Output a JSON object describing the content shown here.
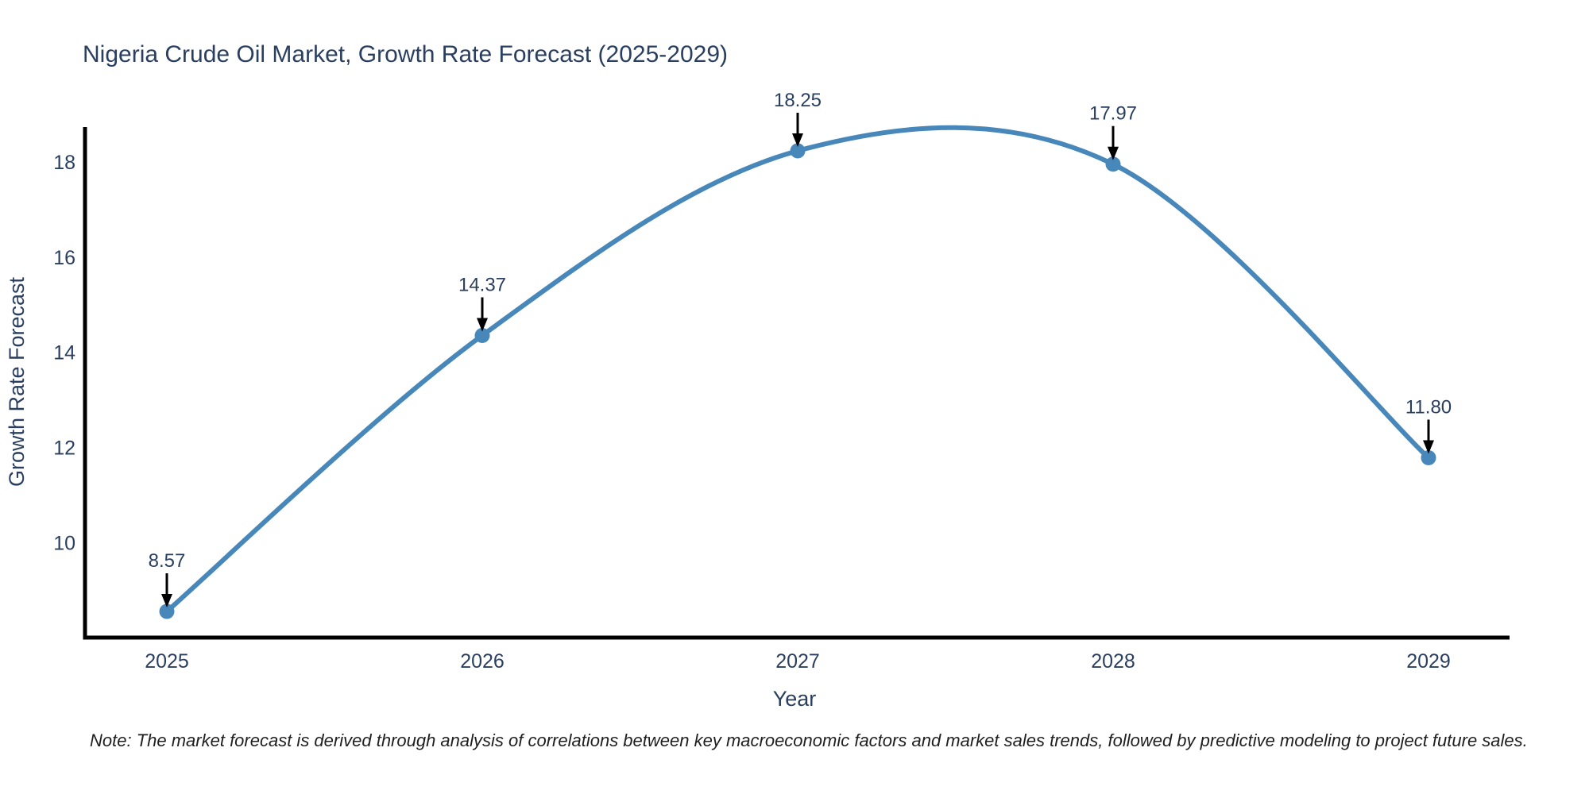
{
  "chart_data": {
    "type": "line",
    "title": "Nigeria Crude Oil Market, Growth Rate Forecast (2025-2029)",
    "xlabel": "Year",
    "ylabel": "Growth Rate Forecast",
    "categories": [
      "2025",
      "2026",
      "2027",
      "2028",
      "2029"
    ],
    "x": [
      2025,
      2026,
      2027,
      2028,
      2029
    ],
    "values": [
      8.57,
      14.37,
      18.25,
      17.97,
      11.8
    ],
    "point_labels": [
      "8.57",
      "14.37",
      "18.25",
      "17.97",
      "11.80"
    ],
    "yticks": [
      10,
      12,
      14,
      16,
      18
    ],
    "ytick_labels": [
      "10",
      "12",
      "14",
      "16",
      "18"
    ],
    "ylim": [
      8.02,
      18.75
    ],
    "line_shape": "spline",
    "markers": true,
    "annotations": "value labels with downward arrows above each point",
    "grid": false,
    "legend": false,
    "note": "Note: The market forecast is derived through analysis of correlations between key macroeconomic factors and market sales trends, followed by predictive modeling to project future sales.",
    "colors": {
      "line": "#4787ba",
      "text": "#2a3f5f",
      "axis": "#000000",
      "arrow": "#000000",
      "note_text": "#1f1f1f",
      "background": "#ffffff"
    }
  }
}
